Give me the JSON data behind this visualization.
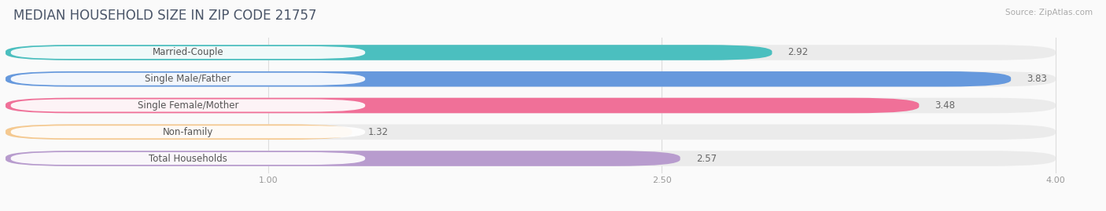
{
  "title": "MEDIAN HOUSEHOLD SIZE IN ZIP CODE 21757",
  "source": "Source: ZipAtlas.com",
  "categories": [
    "Married-Couple",
    "Single Male/Father",
    "Single Female/Mother",
    "Non-family",
    "Total Households"
  ],
  "values": [
    2.92,
    3.83,
    3.48,
    1.32,
    2.57
  ],
  "bar_colors": [
    "#4BBFBF",
    "#6699DD",
    "#F07098",
    "#F5C990",
    "#B89CCE"
  ],
  "label_pill_colors": [
    "#EAFAFAFA",
    "#EAFAFAFA",
    "#EAFAFAFA",
    "#EAFAFAFA",
    "#EAFAFAFA"
  ],
  "xlim_start": 0.0,
  "xlim_end": 4.15,
  "x_axis_start": 0.0,
  "xticks": [
    1.0,
    2.5,
    4.0
  ],
  "xticklabels": [
    "1.00",
    "2.50",
    "4.00"
  ],
  "background_color": "#FAFAFA",
  "bar_bg_color": "#EBEBEB",
  "title_color": "#4A5568",
  "source_color": "#AAAAAA",
  "label_text_color": "#555555",
  "value_text_color": "#666666",
  "title_fontsize": 12,
  "label_fontsize": 8.5,
  "value_fontsize": 8.5,
  "bar_height": 0.58,
  "n_bars": 5
}
